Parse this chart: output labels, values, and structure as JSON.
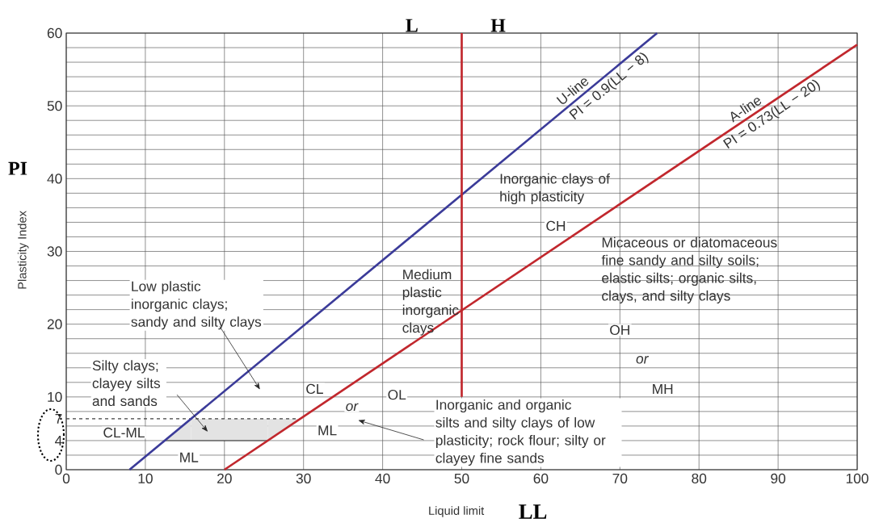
{
  "chart_data": {
    "type": "line",
    "xlabel": "Liquid limit",
    "ylabel": "Plasticity Index",
    "series": [
      {
        "color": "#3b3b99",
        "x": [
          8,
          74.7
        ],
        "values": [
          0,
          60
        ]
      },
      {
        "color": "#c1272d",
        "x": [
          20,
          100
        ],
        "values": [
          0,
          58.4
        ]
      },
      {
        "color": "#c1272d",
        "x": [
          50,
          50
        ],
        "values": [
          10,
          60
        ]
      }
    ],
    "xlim": [
      0,
      100
    ],
    "ylim": [
      0,
      60
    ],
    "xticks": [
      0,
      10,
      20,
      30,
      40,
      50,
      60,
      70,
      80,
      90,
      100
    ],
    "yticks": [
      0,
      {
        "value": 2,
        "label": null
      },
      4,
      {
        "value": 6,
        "label": null
      },
      7,
      {
        "value": 8,
        "label": null
      },
      10,
      {
        "value": 12,
        "label": null
      },
      {
        "value": 14,
        "label": null
      },
      {
        "value": 16,
        "label": null
      },
      {
        "value": 18,
        "label": null
      },
      20,
      {
        "value": 22,
        "label": null
      },
      {
        "value": 24,
        "label": null
      },
      {
        "value": 26,
        "label": null
      },
      {
        "value": 28,
        "label": null
      },
      30,
      {
        "value": 32,
        "label": null
      },
      {
        "value": 34,
        "label": null
      },
      {
        "value": 36,
        "label": null
      },
      {
        "value": 38,
        "label": null
      },
      40,
      {
        "value": 42,
        "label": null
      },
      {
        "value": 44,
        "label": null
      },
      {
        "value": 46,
        "label": null
      },
      {
        "value": 48,
        "label": null
      },
      50,
      {
        "value": 52,
        "label": null
      },
      {
        "value": 54,
        "label": null
      },
      {
        "value": 56,
        "label": null
      },
      {
        "value": 58,
        "label": null
      },
      60
    ],
    "grid": true,
    "bands": [
      {
        "axis": "y",
        "from": 4,
        "to": 7,
        "color": "#e3e3e3"
      }
    ],
    "ref_lines": [
      {
        "axis": "y",
        "value": 7,
        "line_style": "dashed"
      }
    ],
    "annotations": [
      "L",
      "H",
      "PI",
      "LL",
      "U-line",
      "PI = 0.9(LL − 8)",
      "A-line",
      "PI = 0.73(LL − 20)",
      "Inorganic clays of high plasticity",
      "CH",
      "Micaceous or diatomaceous fine sandy and silty soils; elastic silts; organic silts, clays, and silty clays",
      "Medium plastic inorganic clays",
      "OH",
      "or",
      "MH",
      "Inorganic and organic silts and silty clays of low plasticity; rock flour; silty or clayey fine sands",
      "Low plastic inorganic clays; sandy and silty clays",
      "Silty clays; clayey silts and sands",
      "CL-ML",
      "ML",
      "CL",
      "or",
      "OL",
      "ML"
    ]
  }
}
